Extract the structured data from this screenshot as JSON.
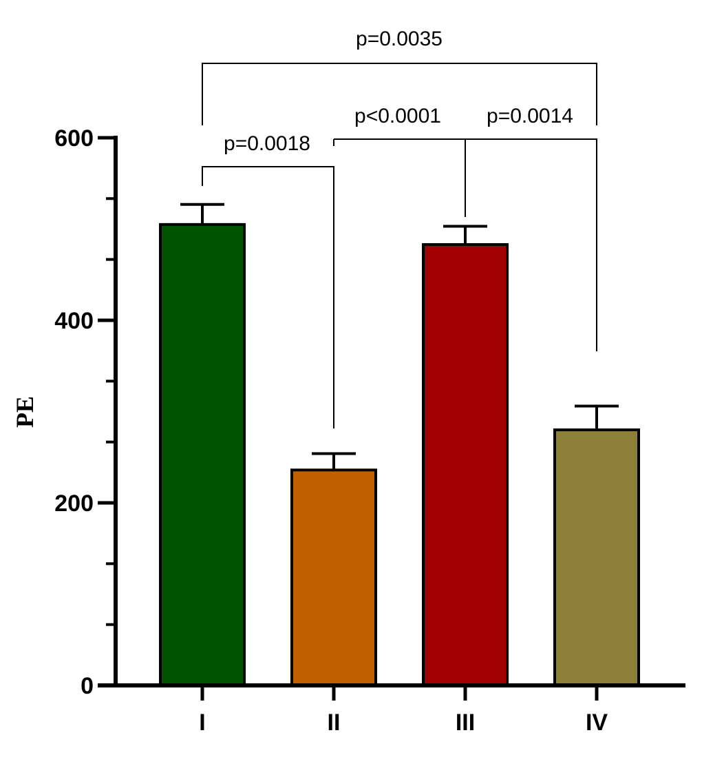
{
  "chart_data": {
    "type": "bar",
    "title": "",
    "xlabel": "",
    "ylabel": "PE",
    "ylim": [
      0,
      600
    ],
    "yticks": [
      "0",
      "200",
      "400",
      "600"
    ],
    "yminor_step": 66.67,
    "grid": false,
    "categories": [
      "I",
      "II",
      "III",
      "IV"
    ],
    "values": [
      505,
      236,
      483,
      280
    ],
    "errors": [
      22,
      18,
      20,
      26
    ],
    "colors": [
      "#005400",
      "#C06000",
      "#A00000",
      "#8B7F3A"
    ],
    "comparisons": [
      {
        "from": 0,
        "to": 1,
        "label": "p=0.0018"
      },
      {
        "from": 2,
        "to": 3,
        "label": "p=0.0014"
      },
      {
        "from": 1,
        "to": 2,
        "label": "p<0.0001"
      },
      {
        "from": 0,
        "to": 3,
        "label": "p=0.0035"
      }
    ]
  }
}
